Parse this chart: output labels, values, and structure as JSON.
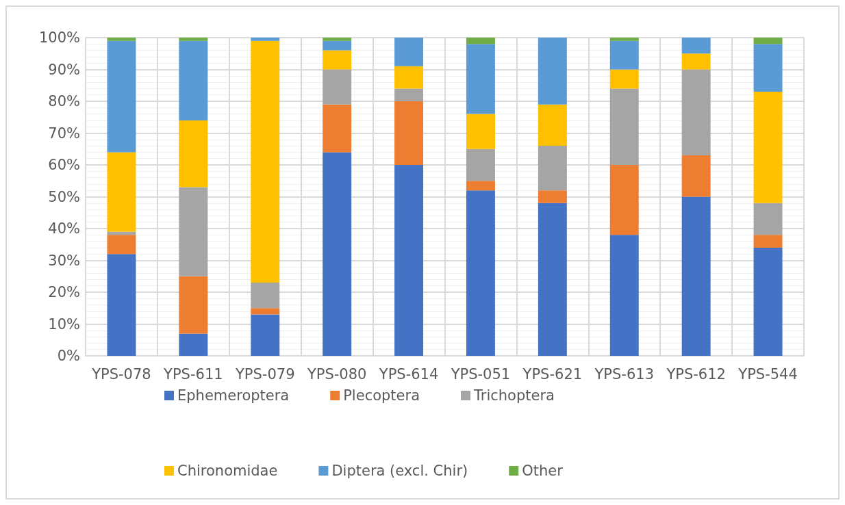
{
  "chart_data": {
    "type": "bar",
    "stacked": true,
    "categories": [
      "YPS-078",
      "YPS-611",
      "YPS-079",
      "YPS-080",
      "YPS-614",
      "YPS-051",
      "YPS-621",
      "YPS-613",
      "YPS-612",
      "YPS-544"
    ],
    "series": [
      {
        "name": "Ephemeroptera",
        "color": "#4472c4",
        "values": [
          32,
          7,
          13,
          64,
          60,
          52,
          48,
          38,
          50,
          34
        ]
      },
      {
        "name": "Plecoptera",
        "color": "#ed7d31",
        "values": [
          6,
          18,
          2,
          15,
          20,
          3,
          4,
          22,
          13,
          4
        ]
      },
      {
        "name": "Trichoptera",
        "color": "#a5a5a5",
        "values": [
          1,
          28,
          8,
          11,
          4,
          10,
          14,
          24,
          27,
          10
        ]
      },
      {
        "name": "Chironomidae",
        "color": "#ffc000",
        "values": [
          25,
          21,
          76,
          6,
          7,
          11,
          13,
          6,
          5,
          35
        ]
      },
      {
        "name": "Diptera (excl. Chir)",
        "color": "#5b9bd5",
        "values": [
          35,
          25,
          1,
          3,
          9,
          22,
          21,
          9,
          5,
          15
        ]
      },
      {
        "name": "Other",
        "color": "#70ad47",
        "values": [
          1,
          1,
          0,
          1,
          0,
          2,
          0,
          1,
          0,
          2
        ]
      }
    ],
    "ylim": [
      0,
      100
    ],
    "yticks": [
      {
        "value": 0,
        "label": "0%"
      },
      {
        "value": 10,
        "label": "10%"
      },
      {
        "value": 20,
        "label": "20%"
      },
      {
        "value": 30,
        "label": "30%"
      },
      {
        "value": 40,
        "label": "40%"
      },
      {
        "value": 50,
        "label": "50%"
      },
      {
        "value": 60,
        "label": "60%"
      },
      {
        "value": 70,
        "label": "70%"
      },
      {
        "value": 80,
        "label": "80%"
      },
      {
        "value": 90,
        "label": "90%"
      },
      {
        "value": 100,
        "label": "100%"
      }
    ],
    "grid": true,
    "legend": "bottom"
  }
}
